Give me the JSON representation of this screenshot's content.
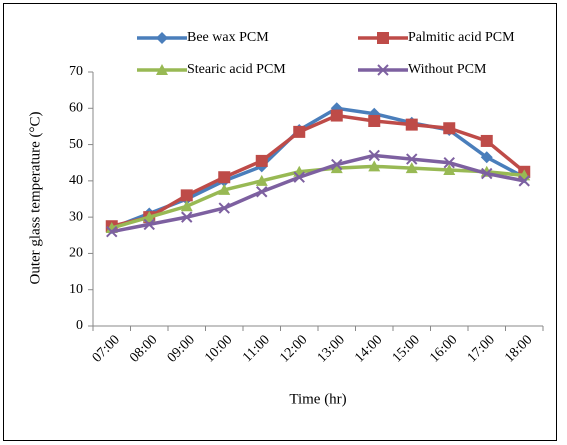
{
  "chart_data": {
    "type": "line",
    "y_label": "Outer glass temperature (°C)",
    "x_label": "Time (hr)",
    "categories": [
      "07:00",
      "08:00",
      "09:00",
      "10:00",
      "11:00",
      "12:00",
      "13:00",
      "14:00",
      "15:00",
      "16:00",
      "17:00",
      "18:00"
    ],
    "series": [
      {
        "name": "Bee wax PCM",
        "color": "#4a7ebb",
        "marker": "diamond",
        "values": [
          27,
          31,
          35,
          40,
          44,
          54,
          60,
          58.5,
          56,
          54,
          46.5,
          41
        ]
      },
      {
        "name": "Palmitic acid PCM",
        "color": "#be4b48",
        "marker": "square",
        "values": [
          27.5,
          30,
          36,
          41,
          45.5,
          53.5,
          58,
          56.5,
          55.5,
          54.5,
          51,
          42.5
        ]
      },
      {
        "name": "Stearic acid PCM",
        "color": "#98b954",
        "marker": "triangle",
        "values": [
          27,
          30,
          33,
          37.5,
          40,
          42.5,
          43.5,
          44,
          43.5,
          43,
          42.5,
          41.5
        ]
      },
      {
        "name": "Without PCM",
        "color": "#7d60a0",
        "marker": "x",
        "values": [
          26,
          28,
          30,
          32.5,
          37,
          41,
          44.5,
          47,
          46,
          45,
          42,
          40
        ]
      }
    ],
    "ylim": [
      0,
      70
    ],
    "yticks": [
      0,
      10,
      20,
      30,
      40,
      50,
      60,
      70
    ],
    "grid": false
  }
}
